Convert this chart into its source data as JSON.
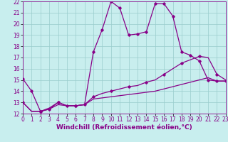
{
  "xlabel": "Windchill (Refroidissement éolien,°C)",
  "xlim": [
    0,
    23
  ],
  "ylim": [
    12,
    22
  ],
  "xticks": [
    0,
    1,
    2,
    3,
    4,
    5,
    6,
    7,
    8,
    9,
    10,
    11,
    12,
    13,
    14,
    15,
    16,
    17,
    18,
    19,
    20,
    21,
    22,
    23
  ],
  "yticks": [
    12,
    13,
    14,
    15,
    16,
    17,
    18,
    19,
    20,
    21,
    22
  ],
  "bg_color": "#c8eeee",
  "line_color": "#880088",
  "grid_color": "#99cccc",
  "line1_x": [
    0,
    1,
    2,
    3,
    4,
    5,
    6,
    7,
    8,
    9,
    10,
    11,
    12,
    13,
    14,
    15,
    16,
    17,
    18,
    19,
    20,
    21,
    22,
    23
  ],
  "line1_y": [
    15.1,
    14.0,
    12.2,
    12.4,
    13.0,
    12.7,
    12.7,
    12.8,
    17.5,
    19.5,
    22.0,
    21.4,
    19.0,
    19.1,
    19.3,
    21.8,
    21.8,
    20.7,
    17.5,
    17.2,
    16.7,
    15.0,
    14.9,
    14.9
  ],
  "line2_x": [
    0,
    1,
    2,
    3,
    4,
    5,
    6,
    7,
    8,
    9,
    10,
    11,
    12,
    13,
    14,
    15,
    16,
    17,
    18,
    19,
    20,
    21,
    22,
    23
  ],
  "line2_y": [
    13.0,
    12.2,
    12.2,
    12.5,
    13.0,
    12.7,
    12.7,
    12.8,
    13.5,
    13.8,
    14.0,
    14.2,
    14.4,
    14.5,
    14.8,
    15.0,
    15.5,
    16.0,
    16.5,
    16.8,
    17.1,
    17.0,
    15.5,
    15.0
  ],
  "line3_x": [
    0,
    1,
    2,
    3,
    4,
    5,
    6,
    7,
    8,
    9,
    10,
    11,
    12,
    13,
    14,
    15,
    16,
    17,
    18,
    19,
    20,
    21,
    22,
    23
  ],
  "line3_y": [
    13.0,
    12.2,
    12.2,
    12.4,
    12.8,
    12.7,
    12.7,
    12.8,
    13.3,
    13.4,
    13.5,
    13.6,
    13.7,
    13.8,
    13.9,
    14.0,
    14.2,
    14.4,
    14.6,
    14.8,
    15.0,
    15.2,
    14.9,
    14.9
  ],
  "marker": "D",
  "markersize": 1.8,
  "linewidth": 0.9,
  "xlabel_fontsize": 6.5,
  "tick_fontsize": 5.5
}
